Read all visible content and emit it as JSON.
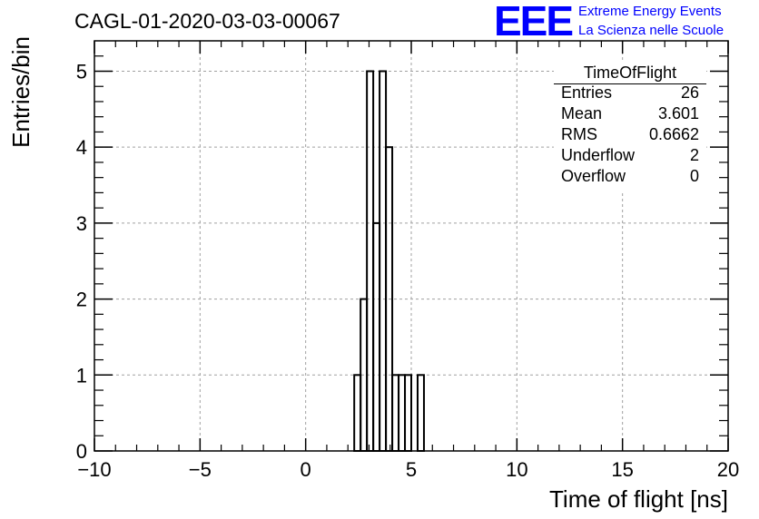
{
  "header": {
    "title": "CAGL-01-2020-03-03-00067"
  },
  "logo": {
    "mark": "EEE",
    "line1": "Extreme Energy Events",
    "line2": "La Scienza nelle Scuole",
    "color": "#0000ff"
  },
  "stats_box": {
    "title": "TimeOfFlight",
    "rows": [
      {
        "label": "Entries",
        "value": "26"
      },
      {
        "label": "Mean",
        "value": "3.601"
      },
      {
        "label": "RMS",
        "value": "0.6662"
      },
      {
        "label": "Underflow",
        "value": "2"
      },
      {
        "label": "Overflow",
        "value": "0"
      }
    ]
  },
  "chart_data": {
    "type": "histogram",
    "xlabel": "Time of flight [ns]",
    "ylabel": "Entries/bin",
    "xlim": [
      -10,
      20
    ],
    "ylim": [
      0,
      5.4
    ],
    "x_ticks": [
      "−10",
      "−5",
      "0",
      "5",
      "10",
      "15",
      "20"
    ],
    "x_tick_values": [
      -10,
      -5,
      0,
      5,
      10,
      15,
      20
    ],
    "y_ticks": [
      "0",
      "1",
      "2",
      "3",
      "4",
      "5"
    ],
    "y_tick_values": [
      0,
      1,
      2,
      3,
      4,
      5
    ],
    "grid": true,
    "bin_width": 0.3,
    "bins": [
      {
        "x0": 2.3,
        "x1": 2.6,
        "count": 1
      },
      {
        "x0": 2.6,
        "x1": 2.9,
        "count": 2
      },
      {
        "x0": 2.9,
        "x1": 3.2,
        "count": 5
      },
      {
        "x0": 3.2,
        "x1": 3.5,
        "count": 3
      },
      {
        "x0": 3.5,
        "x1": 3.8,
        "count": 5
      },
      {
        "x0": 3.8,
        "x1": 4.1,
        "count": 4
      },
      {
        "x0": 4.1,
        "x1": 4.4,
        "count": 1
      },
      {
        "x0": 4.4,
        "x1": 4.7,
        "count": 1
      },
      {
        "x0": 4.7,
        "x1": 5.0,
        "count": 1
      },
      {
        "x0": 5.0,
        "x1": 5.3,
        "count": 0
      },
      {
        "x0": 5.3,
        "x1": 5.6,
        "count": 1
      }
    ],
    "line_color": "#000000",
    "grid_color": "#a0a0a0"
  }
}
